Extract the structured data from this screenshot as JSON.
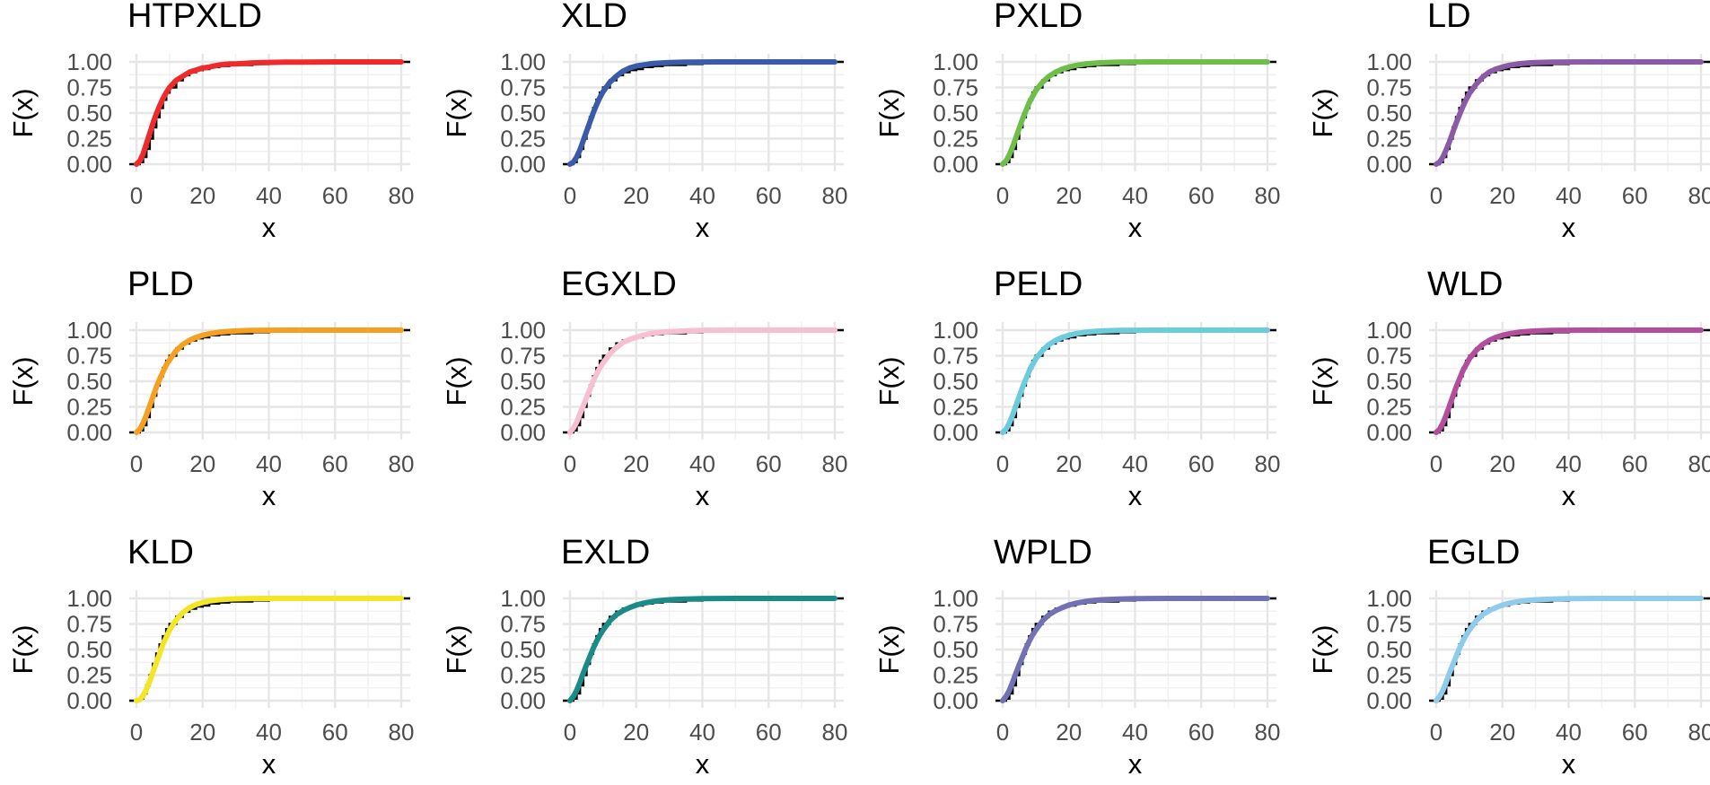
{
  "chart_data": {
    "type": "line",
    "layout": {
      "rows": 3,
      "columns": 4
    },
    "xlabel": "x",
    "ylabel": "F(x)",
    "xlim": [
      0,
      80
    ],
    "ylim": [
      0,
      1
    ],
    "x_ticks": [
      0,
      20,
      40,
      60,
      80
    ],
    "x_tick_labels": [
      "0",
      "20",
      "40",
      "60",
      "80"
    ],
    "y_ticks": [
      0,
      0.25,
      0.5,
      0.75,
      1
    ],
    "y_tick_labels": [
      "0.00",
      "0.25",
      "0.50",
      "0.75",
      "1.00"
    ],
    "grid": true,
    "empirical": {
      "name": "Empirical CDF",
      "color": "#000000",
      "x": [
        0,
        1,
        2,
        3,
        4,
        5,
        6,
        7,
        8,
        9,
        10,
        12,
        14,
        16,
        18,
        20,
        22,
        25,
        28,
        30,
        35,
        40,
        45,
        50,
        55,
        60,
        70,
        80
      ],
      "y": [
        0,
        0.02,
        0.07,
        0.15,
        0.25,
        0.36,
        0.46,
        0.55,
        0.63,
        0.7,
        0.75,
        0.82,
        0.87,
        0.9,
        0.92,
        0.93,
        0.95,
        0.96,
        0.97,
        0.97,
        0.98,
        0.99,
        0.99,
        0.995,
        0.998,
        0.999,
        1,
        1
      ]
    },
    "x": [
      0,
      1,
      2,
      3,
      4,
      5,
      6,
      7,
      8,
      9,
      10,
      12,
      14,
      16,
      18,
      20,
      22,
      25,
      28,
      30,
      35,
      40,
      45,
      50,
      55,
      60,
      70,
      80
    ],
    "panels": [
      {
        "title": "HTPXLD",
        "color": "#EE2A2A",
        "values": [
          0,
          0.03,
          0.1,
          0.2,
          0.3,
          0.4,
          0.49,
          0.57,
          0.64,
          0.7,
          0.75,
          0.82,
          0.86,
          0.9,
          0.92,
          0.94,
          0.95,
          0.97,
          0.98,
          0.98,
          0.99,
          0.995,
          0.997,
          0.998,
          0.999,
          1,
          1,
          1
        ]
      },
      {
        "title": "XLD",
        "color": "#3A5BA9",
        "values": [
          0,
          0.02,
          0.07,
          0.14,
          0.23,
          0.32,
          0.41,
          0.5,
          0.58,
          0.65,
          0.71,
          0.8,
          0.86,
          0.91,
          0.94,
          0.96,
          0.97,
          0.985,
          0.99,
          0.994,
          0.998,
          0.999,
          1,
          1,
          1,
          1,
          1,
          1
        ]
      },
      {
        "title": "PXLD",
        "color": "#6DBE4B",
        "values": [
          0,
          0.03,
          0.09,
          0.17,
          0.26,
          0.35,
          0.44,
          0.52,
          0.6,
          0.66,
          0.72,
          0.8,
          0.86,
          0.9,
          0.93,
          0.95,
          0.965,
          0.98,
          0.988,
          0.992,
          0.997,
          0.999,
          1,
          1,
          1,
          1,
          1,
          1
        ]
      },
      {
        "title": "LD",
        "color": "#8B5AA6",
        "values": [
          0,
          0.02,
          0.07,
          0.14,
          0.22,
          0.31,
          0.4,
          0.48,
          0.56,
          0.63,
          0.69,
          0.78,
          0.85,
          0.9,
          0.93,
          0.95,
          0.967,
          0.982,
          0.99,
          0.993,
          0.997,
          0.999,
          1,
          1,
          1,
          1,
          1,
          1
        ]
      },
      {
        "title": "PLD",
        "color": "#F5A020",
        "values": [
          0,
          0.03,
          0.09,
          0.17,
          0.26,
          0.35,
          0.44,
          0.52,
          0.59,
          0.66,
          0.71,
          0.8,
          0.86,
          0.9,
          0.93,
          0.95,
          0.965,
          0.98,
          0.988,
          0.992,
          0.997,
          0.999,
          1,
          1,
          1,
          1,
          1,
          1
        ]
      },
      {
        "title": "EGXLD",
        "color": "#F7BFD0",
        "values": [
          0,
          0.04,
          0.1,
          0.18,
          0.26,
          0.34,
          0.42,
          0.5,
          0.57,
          0.63,
          0.68,
          0.77,
          0.83,
          0.88,
          0.91,
          0.93,
          0.95,
          0.97,
          0.98,
          0.985,
          0.993,
          0.997,
          0.999,
          1,
          1,
          1,
          1,
          1
        ]
      },
      {
        "title": "PELD",
        "color": "#6CCBDD",
        "values": [
          0,
          0.03,
          0.09,
          0.17,
          0.26,
          0.35,
          0.44,
          0.52,
          0.6,
          0.66,
          0.72,
          0.8,
          0.86,
          0.9,
          0.93,
          0.95,
          0.965,
          0.98,
          0.988,
          0.992,
          0.997,
          0.999,
          1,
          1,
          1,
          1,
          1,
          1
        ]
      },
      {
        "title": "WLD",
        "color": "#B24E9D",
        "values": [
          0,
          0.03,
          0.09,
          0.17,
          0.26,
          0.35,
          0.44,
          0.52,
          0.6,
          0.66,
          0.72,
          0.8,
          0.86,
          0.9,
          0.93,
          0.95,
          0.965,
          0.98,
          0.988,
          0.992,
          0.997,
          0.999,
          1,
          1,
          1,
          1,
          1,
          1
        ]
      },
      {
        "title": "KLD",
        "color": "#F2E626",
        "values": [
          0,
          0.01,
          0.05,
          0.11,
          0.19,
          0.28,
          0.37,
          0.46,
          0.55,
          0.62,
          0.69,
          0.79,
          0.86,
          0.91,
          0.94,
          0.96,
          0.975,
          0.987,
          0.993,
          0.996,
          0.999,
          1,
          1,
          1,
          1,
          1,
          1,
          1
        ]
      },
      {
        "title": "EXLD",
        "color": "#1A8C88",
        "values": [
          0,
          0.04,
          0.1,
          0.18,
          0.27,
          0.35,
          0.43,
          0.51,
          0.58,
          0.64,
          0.69,
          0.78,
          0.84,
          0.88,
          0.91,
          0.935,
          0.952,
          0.97,
          0.982,
          0.987,
          0.994,
          0.997,
          0.999,
          1,
          1,
          1,
          1,
          1
        ]
      },
      {
        "title": "WPLD",
        "color": "#7171B4",
        "values": [
          0,
          0.04,
          0.1,
          0.18,
          0.27,
          0.35,
          0.43,
          0.51,
          0.58,
          0.64,
          0.69,
          0.78,
          0.84,
          0.88,
          0.91,
          0.935,
          0.952,
          0.97,
          0.982,
          0.987,
          0.994,
          0.997,
          0.999,
          1,
          1,
          1,
          1,
          1
        ]
      },
      {
        "title": "EGLD",
        "color": "#8FCBEA",
        "values": [
          0,
          0.04,
          0.1,
          0.18,
          0.27,
          0.35,
          0.43,
          0.51,
          0.58,
          0.64,
          0.69,
          0.78,
          0.84,
          0.88,
          0.91,
          0.935,
          0.952,
          0.97,
          0.982,
          0.987,
          0.994,
          0.997,
          0.999,
          1,
          1,
          1,
          1,
          1
        ]
      }
    ]
  }
}
